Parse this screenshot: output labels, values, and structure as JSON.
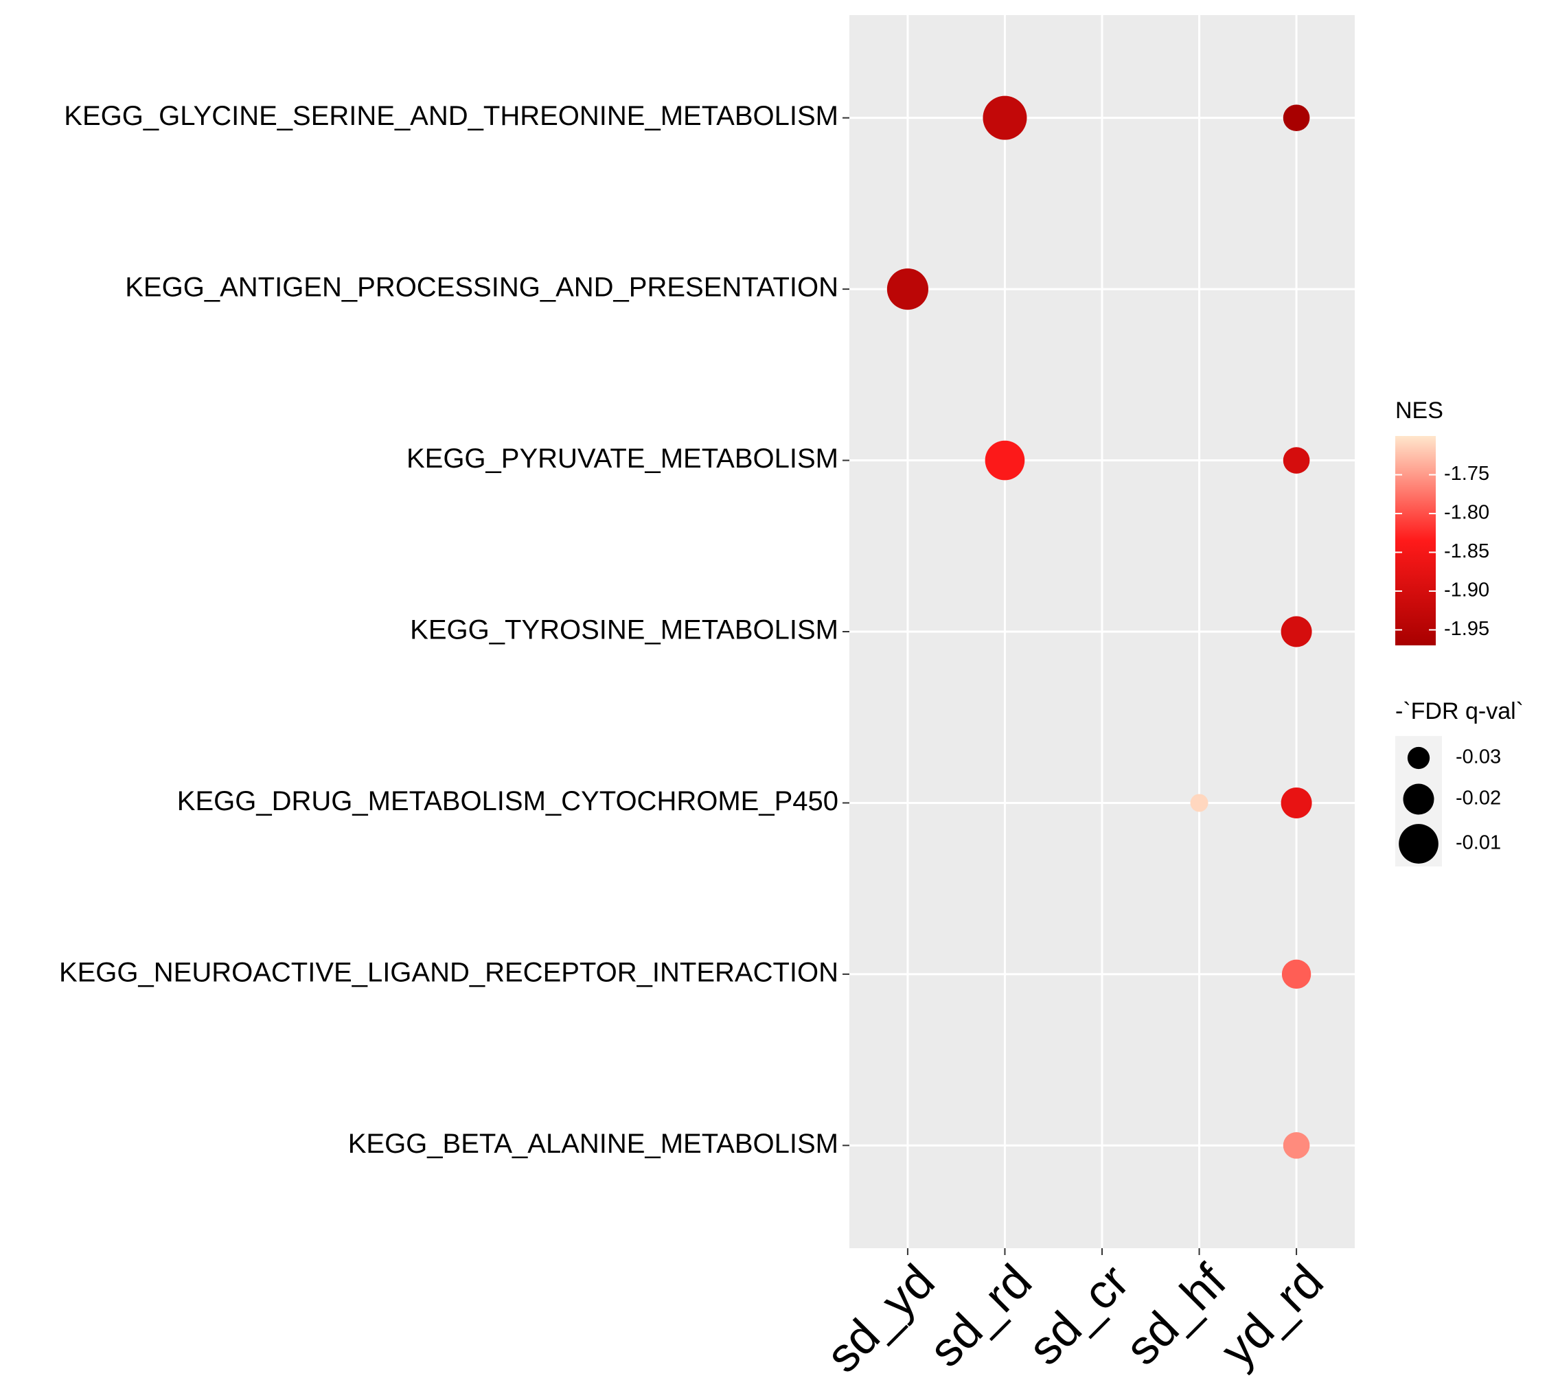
{
  "chart_data": {
    "type": "dot",
    "x_categories": [
      "sd_yd",
      "sd_rd",
      "sd_cr",
      "sd_hf",
      "yd_rd"
    ],
    "y_categories": [
      "KEGG_GLYCINE_SERINE_AND_THREONINE_METABOLISM",
      "KEGG_ANTIGEN_PROCESSING_AND_PRESENTATION",
      "KEGG_PYRUVATE_METABOLISM",
      "KEGG_TYROSINE_METABOLISM",
      "KEGG_DRUG_METABOLISM_CYTOCHROME_P450",
      "KEGG_NEUROACTIVE_LIGAND_RECEPTOR_INTERACTION",
      "KEGG_BETA_ALANINE_METABOLISM"
    ],
    "points": [
      {
        "x": "sd_rd",
        "y": "KEGG_GLYCINE_SERINE_AND_THREONINE_METABOLISM",
        "nes": -1.93,
        "size": -0.005
      },
      {
        "x": "yd_rd",
        "y": "KEGG_GLYCINE_SERINE_AND_THREONINE_METABOLISM",
        "nes": -1.97,
        "size": -0.025
      },
      {
        "x": "sd_yd",
        "y": "KEGG_ANTIGEN_PROCESSING_AND_PRESENTATION",
        "nes": -1.94,
        "size": -0.008
      },
      {
        "x": "sd_rd",
        "y": "KEGG_PYRUVATE_METABOLISM",
        "nes": -1.84,
        "size": -0.01
      },
      {
        "x": "yd_rd",
        "y": "KEGG_PYRUVATE_METABOLISM",
        "nes": -1.9,
        "size": -0.025
      },
      {
        "x": "yd_rd",
        "y": "KEGG_TYROSINE_METABOLISM",
        "nes": -1.9,
        "size": -0.02
      },
      {
        "x": "sd_hf",
        "y": "KEGG_DRUG_METABOLISM_CYTOCHROME_P450",
        "nes": -1.71,
        "size": -0.035
      },
      {
        "x": "yd_rd",
        "y": "KEGG_DRUG_METABOLISM_CYTOCHROME_P450",
        "nes": -1.87,
        "size": -0.02
      },
      {
        "x": "yd_rd",
        "y": "KEGG_NEUROACTIVE_LIGAND_RECEPTOR_INTERACTION",
        "nes": -1.79,
        "size": -0.022
      },
      {
        "x": "yd_rd",
        "y": "KEGG_BETA_ALANINE_METABOLISM",
        "nes": -1.76,
        "size": -0.025
      }
    ],
    "color_title": "NES",
    "color_lim": [
      -1.97,
      -1.7
    ],
    "color_ticks": [
      -1.95,
      {
        "value": -1.9,
        "label": "-1.90"
      },
      -1.85,
      {
        "value": -1.8,
        "label": "-1.80"
      },
      -1.75
    ],
    "colors": [
      "#a80000",
      "#ff1a1a",
      "#ffe6cc"
    ],
    "size_title": "-`FDR q-val`",
    "size_ticks": [
      -0.03,
      -0.02,
      -0.01
    ],
    "grid": true
  }
}
